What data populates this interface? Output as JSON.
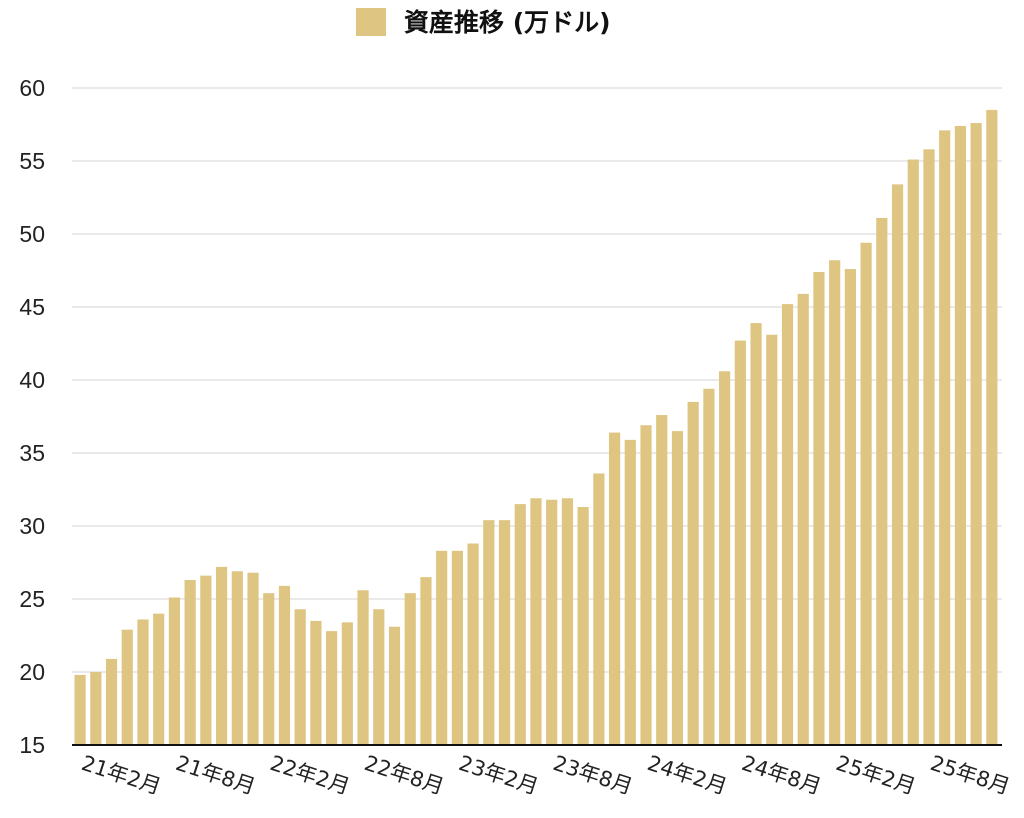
{
  "chart_data": {
    "type": "bar",
    "legend": [
      {
        "label": "資産推移 (万ドル)",
        "color": "#dec682"
      }
    ],
    "legend_position": "top-center",
    "grid": true,
    "ylim": [
      15,
      60
    ],
    "yticks": [
      15,
      20,
      25,
      30,
      35,
      40,
      45,
      50,
      55,
      60
    ],
    "xtick_labels": [
      "21年2月",
      "21年8月",
      "22年2月",
      "22年8月",
      "23年2月",
      "23年8月",
      "24年2月",
      "24年8月",
      "25年2月",
      "25年8月"
    ],
    "categories": [
      "21年2月",
      "21年3月",
      "21年4月",
      "21年5月",
      "21年6月",
      "21年7月",
      "21年8月",
      "21年9月",
      "21年10月",
      "21年11月",
      "21年12月",
      "22年1月",
      "22年2月",
      "22年3月",
      "22年4月",
      "22年5月",
      "22年6月",
      "22年7月",
      "22年8月",
      "22年9月",
      "22年10月",
      "22年11月",
      "22年12月",
      "23年1月",
      "23年2月",
      "23年3月",
      "23年4月",
      "23年5月",
      "23年6月",
      "23年7月",
      "23年8月",
      "23年9月",
      "23年10月",
      "23年11月",
      "23年12月",
      "24年1月",
      "24年2月",
      "24年3月",
      "24年4月",
      "24年5月",
      "24年6月",
      "24年7月",
      "24年8月",
      "24年9月",
      "24年10月",
      "24年11月",
      "24年12月",
      "25年1月",
      "25年2月",
      "25年3月",
      "25年4月",
      "25年5月",
      "25年6月",
      "25年7月",
      "25年8月",
      "25年9月",
      "25年10月",
      "25年11月",
      "25年12月"
    ],
    "series": [
      {
        "name": "資産推移 (万ドル)",
        "color": "#dec682",
        "values": [
          19.8,
          20.0,
          20.9,
          22.9,
          23.6,
          24.0,
          25.1,
          26.3,
          26.6,
          27.2,
          26.9,
          26.8,
          25.4,
          25.9,
          24.3,
          23.5,
          22.8,
          23.4,
          25.6,
          24.3,
          23.1,
          25.4,
          26.5,
          28.3,
          28.3,
          28.8,
          30.4,
          30.4,
          31.5,
          31.9,
          31.8,
          31.9,
          31.3,
          33.6,
          36.4,
          35.9,
          36.9,
          37.6,
          36.5,
          38.5,
          39.4,
          40.6,
          42.7,
          43.9,
          43.1,
          45.2,
          45.9,
          47.4,
          48.2,
          47.6,
          49.4,
          51.1,
          53.4,
          55.1,
          55.8,
          57.1,
          57.4,
          57.6,
          58.5
        ]
      }
    ]
  }
}
